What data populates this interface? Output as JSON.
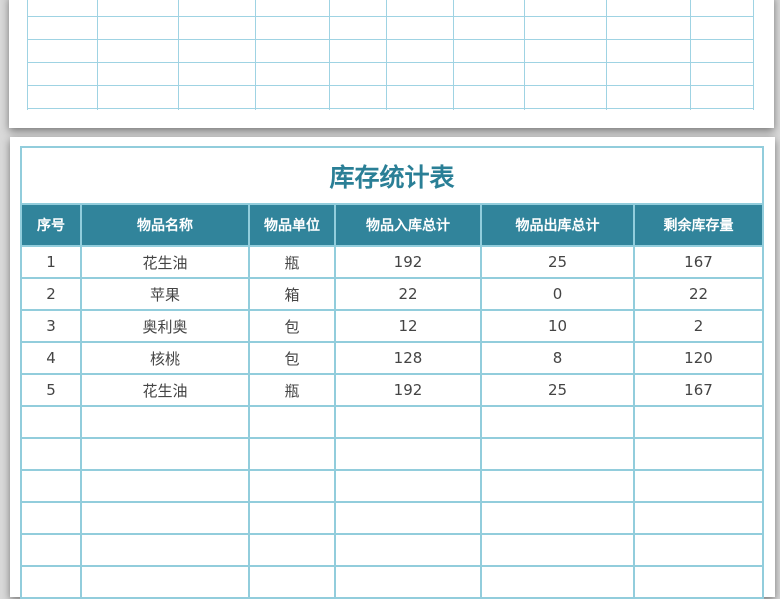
{
  "title": "库存统计表",
  "headers": [
    "序号",
    "物品名称",
    "物品单位",
    "物品入库总计",
    "物品出库总计",
    "剩余库存量"
  ],
  "rows": [
    [
      "1",
      "花生油",
      "瓶",
      "192",
      "25",
      "167"
    ],
    [
      "2",
      "苹果",
      "箱",
      "22",
      "0",
      "22"
    ],
    [
      "3",
      "奥利奥",
      "包",
      "12",
      "10",
      "2"
    ],
    [
      "4",
      "核桃",
      "包",
      "128",
      "8",
      "120"
    ],
    [
      "5",
      "花生油",
      "瓶",
      "192",
      "25",
      "167"
    ]
  ],
  "colors": {
    "header_bg": "#31849b",
    "title": "#2a7f96",
    "border": "#92cddc"
  }
}
